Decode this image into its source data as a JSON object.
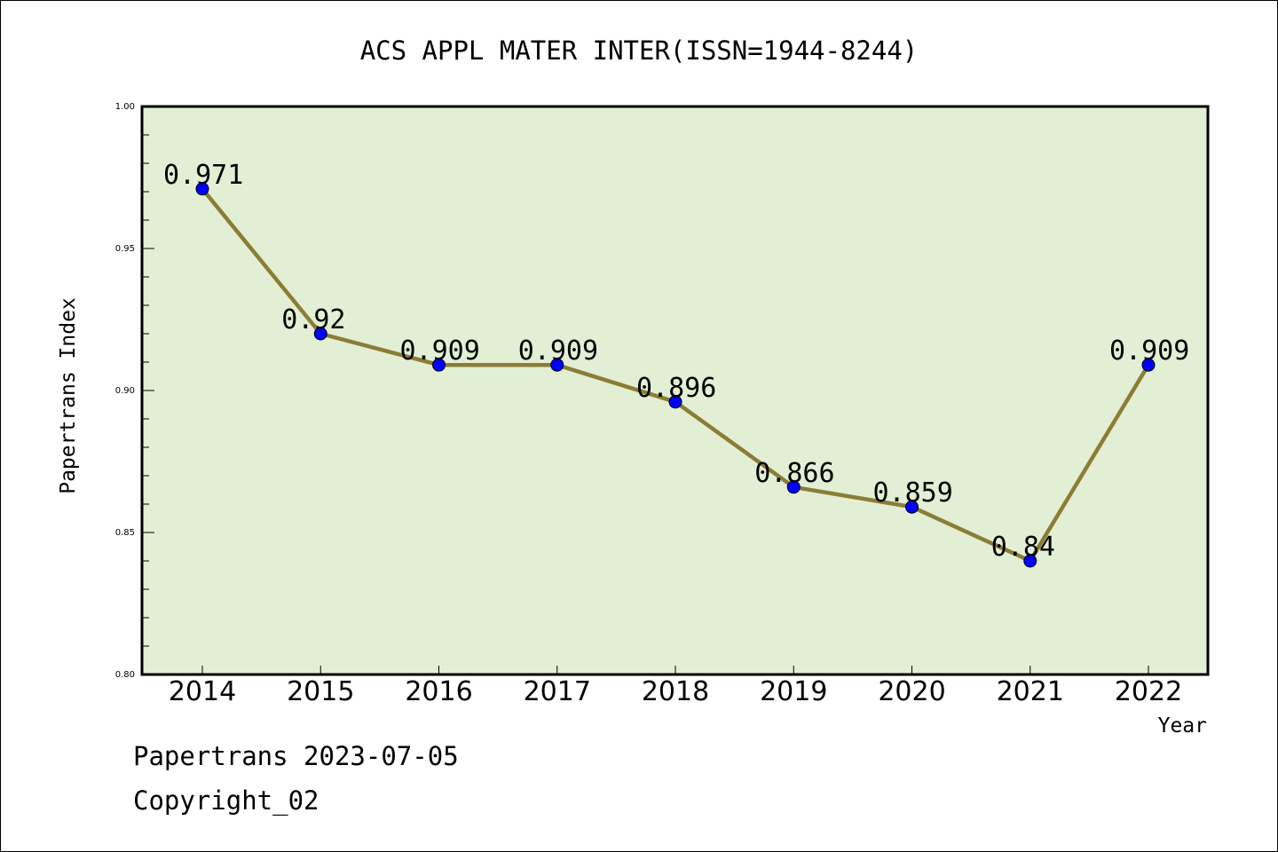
{
  "chart_data": {
    "type": "line",
    "title": "ACS APPL MATER INTER(ISSN=1944-8244)",
    "xlabel": "Year",
    "ylabel": "Papertrans Index",
    "categories": [
      "2014",
      "2015",
      "2016",
      "2017",
      "2018",
      "2019",
      "2020",
      "2021",
      "2022"
    ],
    "values": [
      0.971,
      0.92,
      0.909,
      0.909,
      0.896,
      0.866,
      0.859,
      0.84,
      0.909
    ],
    "data_labels": [
      "0.971",
      "0.92",
      "0.909",
      "0.909",
      "0.896",
      "0.866",
      "0.859",
      "0.84",
      "0.909"
    ],
    "ylim": [
      0.8,
      1.0
    ],
    "yticks": [
      0.8,
      0.85,
      0.9,
      0.95,
      1.0
    ],
    "ytick_labels": [
      "0.80",
      "0.85",
      "0.90",
      "0.95",
      "1.00"
    ],
    "grid": false,
    "legend": "none",
    "colors": {
      "plot_background": "#e2efd5",
      "line": "#8b7d35",
      "marker": "#0000ff",
      "axis": "#000000"
    }
  },
  "footer": {
    "source": "Papertrans 2023-07-05",
    "copyright": "Copyright_02"
  }
}
